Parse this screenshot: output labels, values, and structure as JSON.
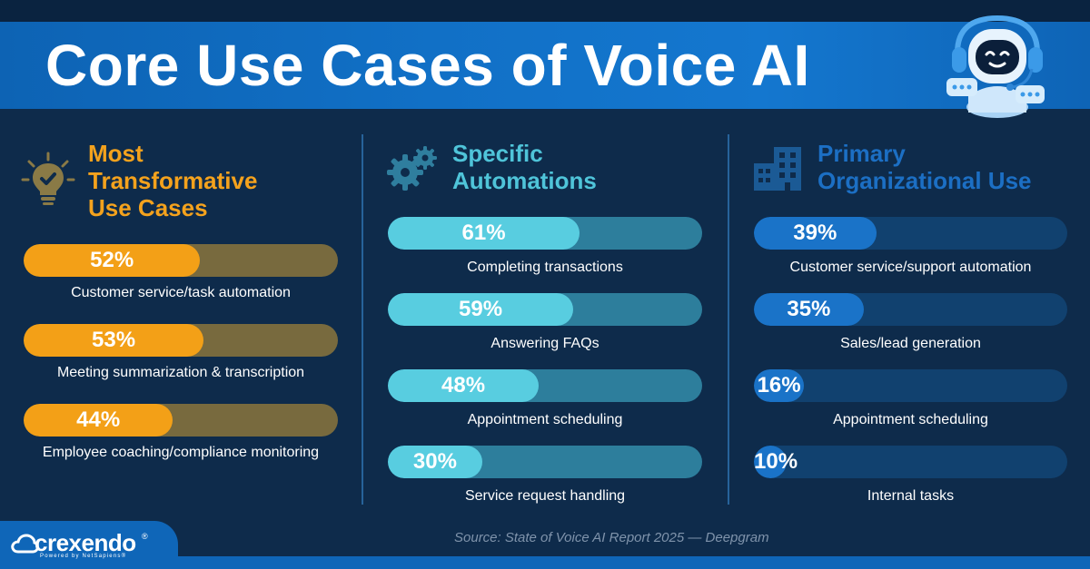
{
  "header": {
    "title": "Core Use Cases of Voice AI"
  },
  "columns": [
    {
      "heading_lines": [
        "Most",
        "Transformative",
        "Use Cases"
      ],
      "icon": "lightbulb-check-icon",
      "accent_color": "#f4a21d"
    },
    {
      "heading_lines": [
        "Specific",
        "Automations"
      ],
      "icon": "gears-icon",
      "accent_color": "#4fc4d9"
    },
    {
      "heading_lines": [
        "Primary",
        "Organizational Use"
      ],
      "icon": "building-icon",
      "accent_color": "#1c6fc4"
    }
  ],
  "chart_data": [
    {
      "type": "bar",
      "orientation": "horizontal",
      "categories": [
        "Customer service/task automation",
        "Meeting summarization & transcription",
        "Employee coaching/compliance monitoring"
      ],
      "values": [
        52,
        53,
        44
      ],
      "value_labels": [
        "52%",
        "53%",
        "44%"
      ],
      "unit": "%",
      "xlim": [
        0,
        100
      ]
    },
    {
      "type": "bar",
      "orientation": "horizontal",
      "categories": [
        "Completing transactions",
        "Answering FAQs",
        "Appointment scheduling",
        "Service request handling"
      ],
      "values": [
        61,
        59,
        48,
        30
      ],
      "value_labels": [
        "61%",
        "59%",
        "48%",
        "30%"
      ],
      "unit": "%",
      "xlim": [
        0,
        100
      ]
    },
    {
      "type": "bar",
      "orientation": "horizontal",
      "categories": [
        "Customer service/support automation",
        "Sales/lead generation",
        "Appointment scheduling",
        "Internal tasks"
      ],
      "values": [
        39,
        35,
        16,
        10
      ],
      "value_labels": [
        "39%",
        "35%",
        "16%",
        "10%"
      ],
      "unit": "%",
      "xlim": [
        0,
        100
      ]
    }
  ],
  "footer": {
    "source": "Source: State of Voice AI Report 2025 — Deepgram",
    "logo_text": "crexendo",
    "logo_registered": "®",
    "logo_sub": "Powered by NetSapiens®"
  },
  "mascot": {
    "icon": "robot-headset-icon"
  }
}
